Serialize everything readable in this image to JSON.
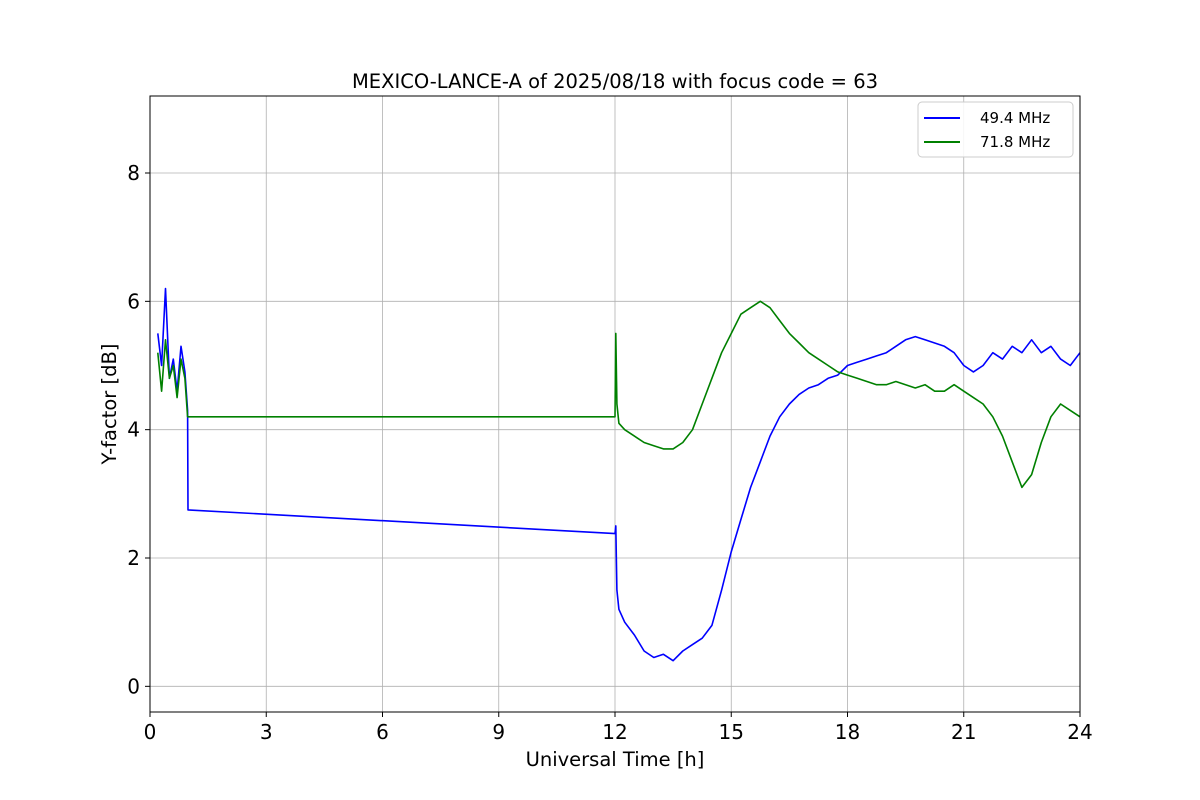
{
  "chart_data": {
    "type": "line",
    "title": "MEXICO-LANCE-A of 2025/08/18 with focus code = 63",
    "xlabel": "Universal Time [h]",
    "ylabel": "Y-factor [dB]",
    "xlim": [
      0,
      24
    ],
    "ylim": [
      -0.4,
      9.2
    ],
    "xticks": [
      0,
      3,
      6,
      9,
      12,
      15,
      18,
      21,
      24
    ],
    "yticks": [
      0,
      2,
      4,
      6,
      8
    ],
    "grid": true,
    "legend_position": "top-right",
    "series": [
      {
        "name": "49.4 MHz",
        "color": "#0000ff",
        "x": [
          0.2,
          0.3,
          0.4,
          0.5,
          0.6,
          0.7,
          0.8,
          0.9,
          0.97,
          0.98,
          12.0,
          12.02,
          12.05,
          12.1,
          12.25,
          12.5,
          12.75,
          13.0,
          13.25,
          13.5,
          13.75,
          14.0,
          14.25,
          14.5,
          14.75,
          15.0,
          15.25,
          15.5,
          15.75,
          16.0,
          16.25,
          16.5,
          16.75,
          17.0,
          17.25,
          17.5,
          17.75,
          18.0,
          18.25,
          18.5,
          18.75,
          19.0,
          19.25,
          19.5,
          19.75,
          20.0,
          20.25,
          20.5,
          20.75,
          21.0,
          21.25,
          21.5,
          21.75,
          22.0,
          22.25,
          22.5,
          22.75,
          23.0,
          23.25,
          23.5,
          23.75,
          24.0
        ],
        "y": [
          5.5,
          5.0,
          6.2,
          4.8,
          5.1,
          4.6,
          5.3,
          4.9,
          4.3,
          2.75,
          2.38,
          2.5,
          1.5,
          1.2,
          1.0,
          0.8,
          0.55,
          0.45,
          0.5,
          0.4,
          0.55,
          0.65,
          0.75,
          0.95,
          1.5,
          2.1,
          2.6,
          3.1,
          3.5,
          3.9,
          4.2,
          4.4,
          4.55,
          4.65,
          4.7,
          4.8,
          4.85,
          5.0,
          5.05,
          5.1,
          5.15,
          5.2,
          5.3,
          5.4,
          5.45,
          5.4,
          5.35,
          5.3,
          5.2,
          5.0,
          4.9,
          5.0,
          5.2,
          5.1,
          5.3,
          5.2,
          5.4,
          5.2,
          5.3,
          5.1,
          5.0,
          5.2
        ]
      },
      {
        "name": "71.8 MHz",
        "color": "#008000",
        "x": [
          0.2,
          0.3,
          0.4,
          0.5,
          0.6,
          0.7,
          0.8,
          0.9,
          0.97,
          12.0,
          12.02,
          12.05,
          12.1,
          12.25,
          12.5,
          12.75,
          13.0,
          13.25,
          13.5,
          13.75,
          14.0,
          14.25,
          14.5,
          14.75,
          15.0,
          15.25,
          15.5,
          15.75,
          16.0,
          16.25,
          16.5,
          16.75,
          17.0,
          17.25,
          17.5,
          17.75,
          18.0,
          18.25,
          18.5,
          18.75,
          19.0,
          19.25,
          19.5,
          19.75,
          20.0,
          20.25,
          20.5,
          20.75,
          21.0,
          21.25,
          21.5,
          21.75,
          22.0,
          22.25,
          22.5,
          22.75,
          23.0,
          23.25,
          23.5,
          23.75,
          24.0
        ],
        "y": [
          5.2,
          4.6,
          5.4,
          4.8,
          5.0,
          4.5,
          5.1,
          4.8,
          4.2,
          4.2,
          5.5,
          4.4,
          4.1,
          4.0,
          3.9,
          3.8,
          3.75,
          3.7,
          3.7,
          3.8,
          4.0,
          4.4,
          4.8,
          5.2,
          5.5,
          5.8,
          5.9,
          6.0,
          5.9,
          5.7,
          5.5,
          5.35,
          5.2,
          5.1,
          5.0,
          4.9,
          4.85,
          4.8,
          4.75,
          4.7,
          4.7,
          4.75,
          4.7,
          4.65,
          4.7,
          4.6,
          4.6,
          4.7,
          4.6,
          4.5,
          4.4,
          4.2,
          3.9,
          3.5,
          3.1,
          3.3,
          3.8,
          4.2,
          4.4,
          4.3,
          4.2
        ]
      }
    ]
  }
}
